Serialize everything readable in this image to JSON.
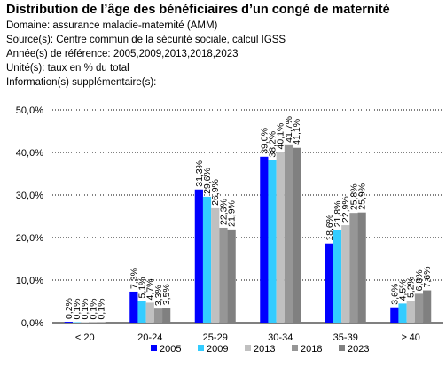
{
  "header": {
    "title": "Distribution de l’âge des bénéficiaires d’un congé de maternité",
    "lines": [
      "Domaine: assurance maladie-maternité (AMM)",
      "Source(s): Centre commun de la sécurité sociale, calcul IGSS",
      "Année(s) de référence: 2005,2009,2013,2018,2023",
      "Unité(s): taux en % du total",
      "Information(s) supplémentaire(s):"
    ]
  },
  "chart_data": {
    "type": "bar",
    "title": "Distribution de l’âge des bénéficiaires d’un congé de maternité",
    "xlabel": "",
    "ylabel": "",
    "categories": [
      "< 20",
      "20-24",
      "25-29",
      "30-34",
      "35-39",
      "≥ 40"
    ],
    "ylim": [
      0,
      50
    ],
    "yticks": [
      "0,0%",
      "10,0%",
      "20,0%",
      "30,0%",
      "40,0%",
      "50,0%"
    ],
    "grid": true,
    "legend": "bottom",
    "series": [
      {
        "name": "2005",
        "color": "#0000ff",
        "values": [
          0.2,
          7.3,
          31.3,
          39.0,
          18.6,
          3.6
        ],
        "labels": [
          "0,2%",
          "7,3%",
          "31,3%",
          "39,0%",
          "18,6%",
          "3,6%"
        ]
      },
      {
        "name": "2009",
        "color": "#33ccff",
        "values": [
          0.1,
          5.1,
          29.6,
          38.2,
          21.8,
          4.5
        ],
        "labels": [
          "0,1%",
          "5,1%",
          "29,6%",
          "38,2%",
          "21,8%",
          "4,5%"
        ]
      },
      {
        "name": "2013",
        "color": "#c0c0c0",
        "values": [
          0.1,
          4.7,
          26.9,
          40.1,
          22.9,
          5.2
        ],
        "labels": [
          "0,1%",
          "4,7%",
          "26,9%",
          "40,1%",
          "22,9%",
          "5,2%"
        ]
      },
      {
        "name": "2018",
        "color": "#969696",
        "values": [
          0.1,
          3.3,
          22.3,
          41.7,
          25.8,
          6.8
        ],
        "labels": [
          "0,1%",
          "3,3%",
          "22,3%",
          "41,7%",
          "25,8%",
          "6,8%"
        ]
      },
      {
        "name": "2023",
        "color": "#808080",
        "values": [
          0.1,
          3.5,
          21.9,
          41.1,
          25.9,
          7.6
        ],
        "labels": [
          "0,1%",
          "3,5%",
          "21,9%",
          "41,1%",
          "25,9%",
          "7,6%"
        ]
      }
    ]
  }
}
